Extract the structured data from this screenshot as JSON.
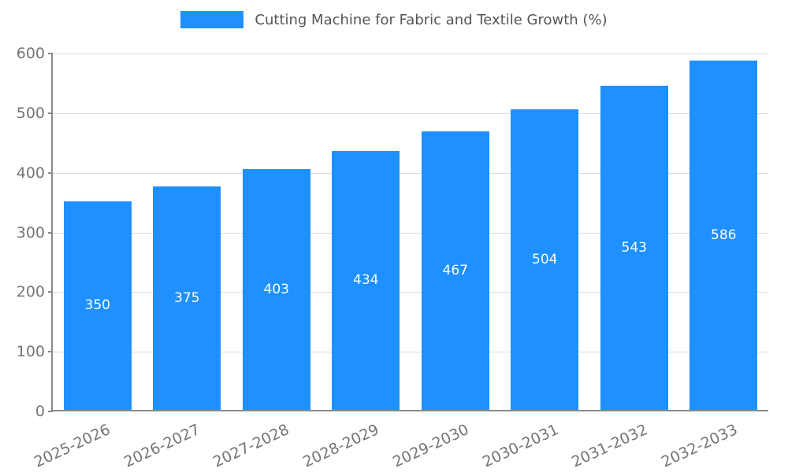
{
  "chart_data": {
    "type": "bar",
    "title": "Cutting Machine for Fabric and Textile Growth (%)",
    "categories": [
      "2025-2026",
      "2026-2027",
      "2027-2028",
      "2028-2029",
      "2029-2030",
      "2030-2031",
      "2031-2032",
      "2032-2033"
    ],
    "values": [
      350,
      375,
      403,
      434,
      467,
      504,
      543,
      586
    ],
    "xlabel": "",
    "ylabel": "",
    "ylim": [
      0,
      600
    ],
    "ytick_step": 100,
    "grid": true,
    "legend_position": "top-center",
    "colors": {
      "bar": "#1E90FF",
      "value_label": "#ffffff",
      "tick_label": "#757575",
      "title_text": "#555555",
      "gridline": "#dddddd",
      "axis": "#8a8a8a"
    }
  }
}
